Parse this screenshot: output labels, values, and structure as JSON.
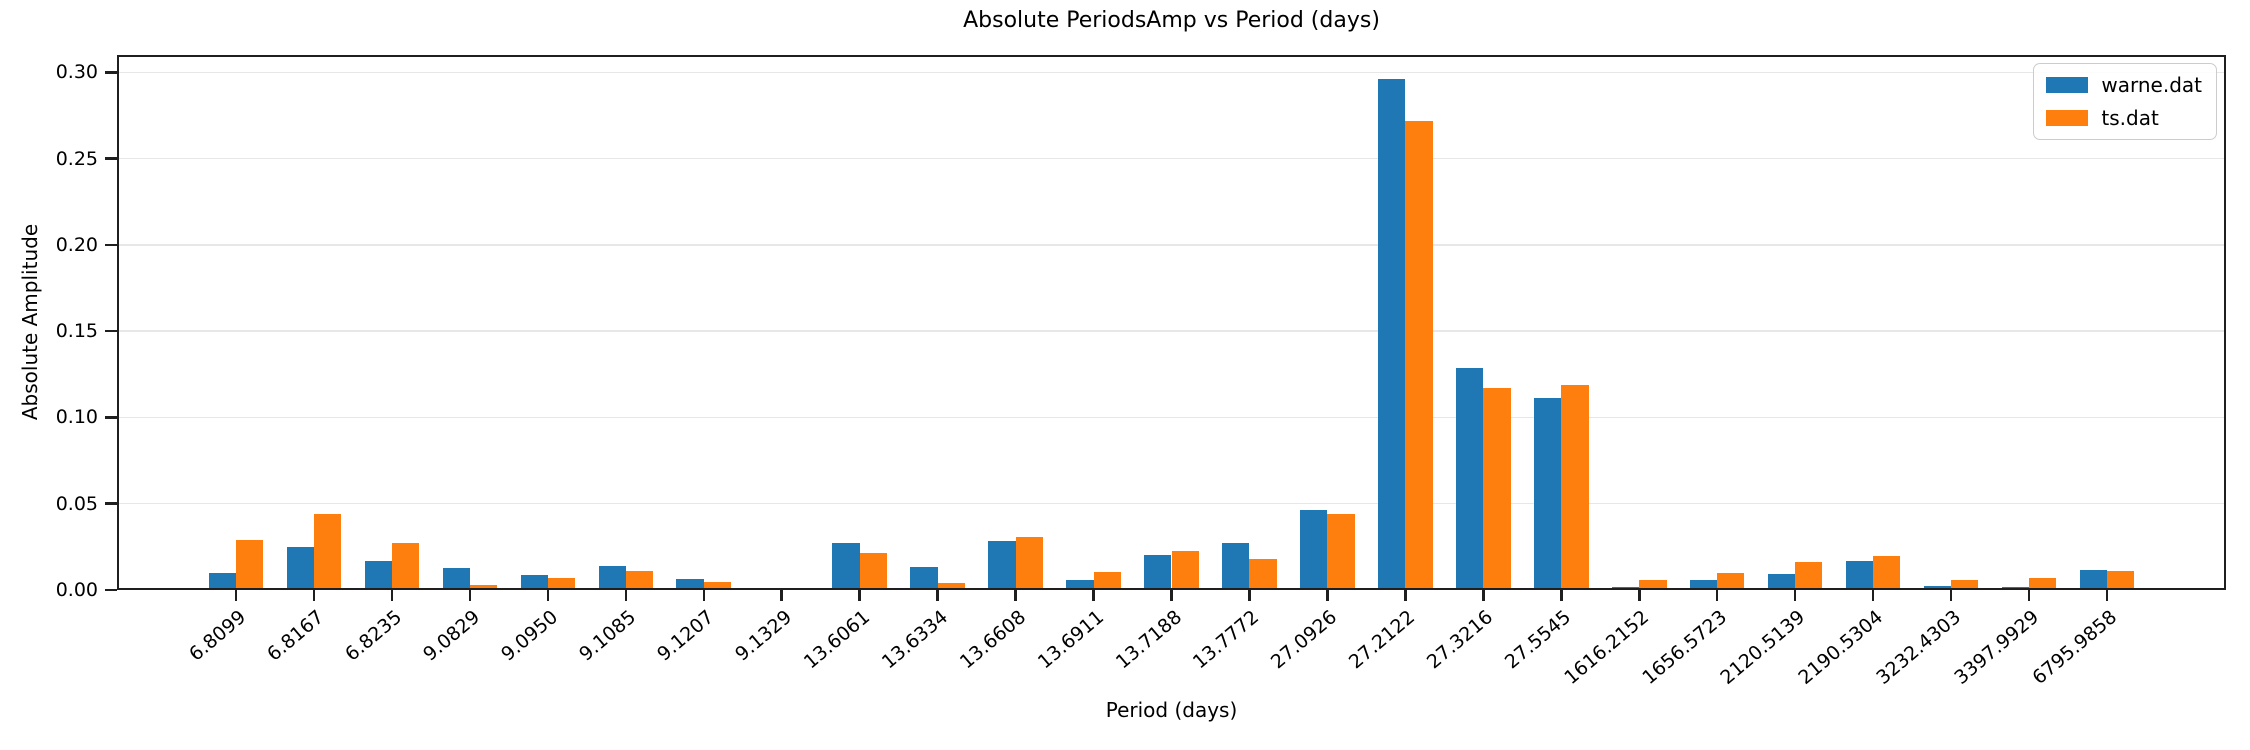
{
  "chart_data": {
    "type": "bar",
    "title": "Absolute PeriodsAmp vs Period (days)",
    "xlabel": "Period (days)",
    "ylabel": "Absolute Amplitude",
    "categories": [
      "6.8099",
      "6.8167",
      "6.8235",
      "9.0829",
      "9.0950",
      "9.1085",
      "9.1207",
      "9.1329",
      "13.6061",
      "13.6334",
      "13.6608",
      "13.6911",
      "13.7188",
      "13.7772",
      "27.0926",
      "27.2122",
      "27.3216",
      "27.5545",
      "1616.2152",
      "1656.5723",
      "2120.5139",
      "2190.5304",
      "3232.4303",
      "3397.9929",
      "6795.9858"
    ],
    "series": [
      {
        "name": "warne.dat",
        "color": "#1f77b4",
        "values": [
          0.01,
          0.025,
          0.017,
          0.013,
          0.0085,
          0.014,
          0.0065,
          0.0003,
          0.0275,
          0.0135,
          0.0285,
          0.006,
          0.0205,
          0.0275,
          0.0465,
          0.296,
          0.1285,
          0.111,
          0.002,
          0.006,
          0.0095,
          0.017,
          0.0025,
          0.002,
          0.0115
        ]
      },
      {
        "name": "ts.dat",
        "color": "#ff7f0e",
        "values": [
          0.029,
          0.044,
          0.027,
          0.003,
          0.007,
          0.011,
          0.0045,
          0.0008,
          0.0215,
          0.004,
          0.031,
          0.0105,
          0.0225,
          0.018,
          0.044,
          0.272,
          0.117,
          0.119,
          0.006,
          0.01,
          0.0165,
          0.0195,
          0.006,
          0.007,
          0.011
        ]
      }
    ],
    "ylim": [
      0,
      0.31
    ],
    "yticks": [
      0,
      0.05,
      0.1,
      0.15,
      0.2,
      0.25,
      0.3
    ],
    "ytick_labels": [
      "0.00",
      "0.05",
      "0.10",
      "0.15",
      "0.20",
      "0.25",
      "0.30"
    ],
    "grid": true,
    "x_tick_rotation_deg": 40,
    "legend_position": "upper-right"
  }
}
